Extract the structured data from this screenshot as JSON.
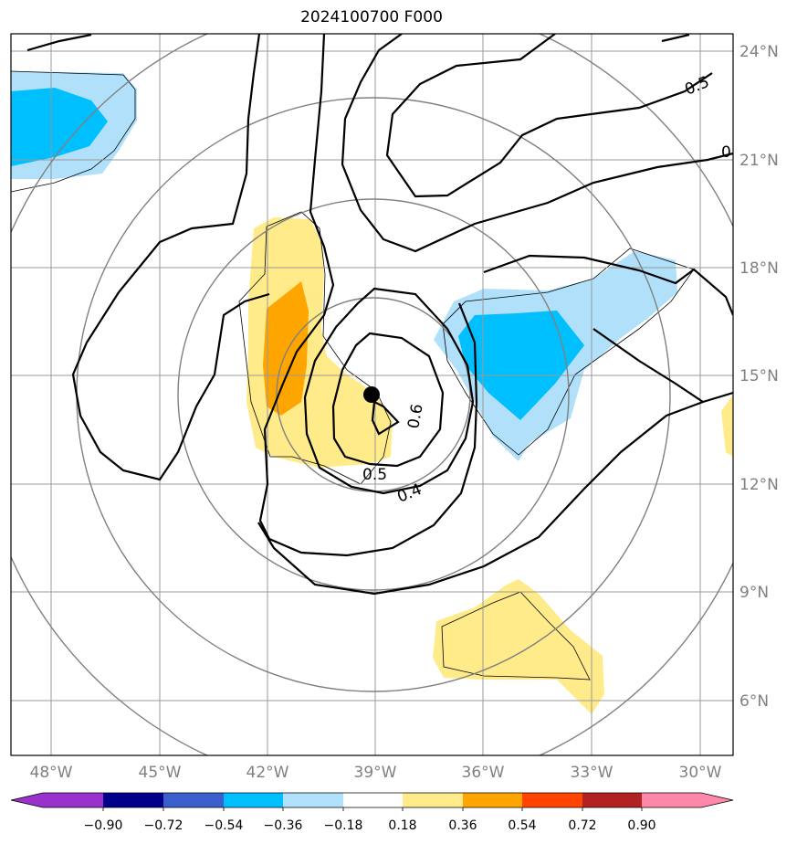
{
  "title": "2024100700 F000",
  "map": {
    "lat_labels": [
      "24°N",
      "21°N",
      "18°N",
      "15°N",
      "12°N",
      "9°N",
      "6°N"
    ],
    "lon_labels": [
      "48°W",
      "45°W",
      "42°W",
      "39°W",
      "36°W",
      "33°W",
      "30°W"
    ],
    "contour_labels": [
      "0.6",
      "0.5",
      "0.4",
      "0.5",
      "0"
    ],
    "storm_center": {
      "lat": 14.5,
      "lon": -39.0
    }
  },
  "colorbar": {
    "ticks": [
      "−0.90",
      "−0.72",
      "−0.54",
      "−0.36",
      "−0.18",
      "0.18",
      "0.36",
      "0.54",
      "0.72",
      "0.90"
    ],
    "colors": [
      "#9932cc",
      "#00008b",
      "#3a5fcd",
      "#00bfff",
      "#b0e0fa",
      "#ffffff",
      "#ffeb8a",
      "#ffa500",
      "#ff4500",
      "#b22222",
      "#ff88aa"
    ]
  }
}
